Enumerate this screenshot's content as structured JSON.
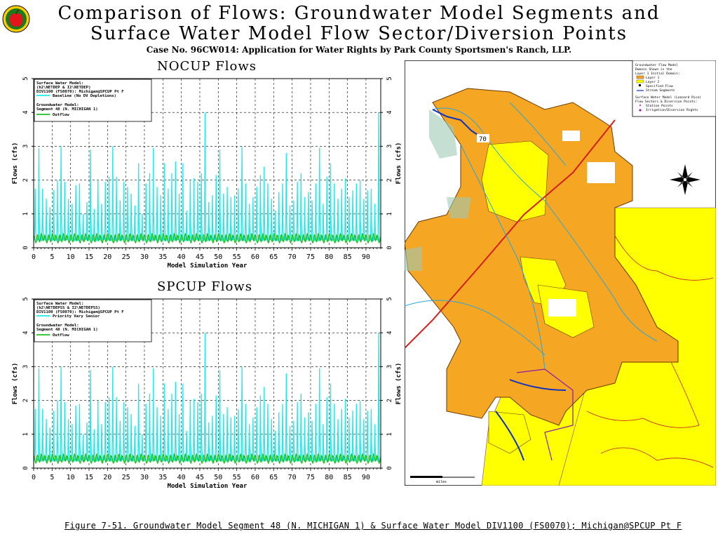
{
  "header": {
    "title_line1": "Comparison of Flows: Groundwater Model Segments and",
    "title_line2": "Surface Water Model Flow Sector/Diversion Points",
    "subtitle": "Case No. 96CW014: Application for Water Rights by Park County Sportsmen's Ranch, LLP."
  },
  "caption": "Figure 7-51. Groundwater Model Segment 48 (N. MICHIGAN 1) & Surface Water Model DIV1100 (FS0070); Michigan@SPCUP Pt F",
  "colors": {
    "cyan_series": "#22e8e8",
    "green_series": "#1fbf1f",
    "map_orange": "#f5a623",
    "map_yellow": "#ffff00"
  },
  "chart_data": [
    {
      "type": "line",
      "title": "NOCUP Flows",
      "xlabel": "Model Simulation Year",
      "ylabel": "Flows (cfs)",
      "xlim": [
        0,
        94
      ],
      "ylim": [
        0,
        5
      ],
      "xticks": [
        "0",
        "5",
        "10",
        "15",
        "20",
        "25",
        "30",
        "35",
        "40",
        "45",
        "50",
        "55",
        "60",
        "65",
        "70",
        "75",
        "80",
        "85",
        "90"
      ],
      "yticks": [
        "0",
        "1",
        "2",
        "3",
        "4",
        "5"
      ],
      "legend": {
        "placement": "top-left",
        "lines": [
          "Surface Water Model:",
          "(h2\\NETDEP & I2\\NETDEP)",
          "DIV1100 (FS0070): Michigan@SPCUP Pt F",
          "Baseline (No DV Depletions)",
          "Groundwater Model:",
          "Segment 48 (N. MICHIGAN 1)",
          "Outflow"
        ]
      },
      "annual_peaks": [
        1.75,
        2.95,
        1.75,
        1.45,
        1.2,
        1.7,
        2.0,
        3.0,
        1.95,
        1.45,
        1.3,
        1.85,
        1.9,
        1.0,
        1.35,
        2.9,
        1.15,
        2.0,
        1.3,
        1.95,
        2.1,
        3.0,
        2.1,
        1.4,
        1.95,
        1.8,
        1.6,
        1.25,
        2.5,
        1.0,
        1.9,
        2.2,
        2.95,
        1.8,
        1.55,
        2.5,
        1.75,
        2.2,
        2.55,
        1.6,
        2.5,
        1.1,
        2.0,
        2.05,
        1.95,
        2.2,
        4.0,
        1.35,
        1.55,
        2.15,
        2.9,
        1.6,
        1.8,
        1.5,
        1.55,
        1.75,
        3.0,
        1.9,
        1.3,
        1.5,
        1.8,
        2.15,
        2.4,
        1.9,
        1.45,
        1.1,
        1.65,
        1.9,
        2.8,
        1.25,
        1.4,
        1.95,
        2.2,
        1.5,
        1.65,
        1.4,
        1.9,
        2.95,
        1.3,
        2.1,
        2.5,
        1.9,
        1.45,
        1.75,
        2.05,
        1.5,
        1.7,
        1.9,
        2.0,
        1.45,
        1.7,
        1.75,
        1.3,
        4.0
      ],
      "series": [
        {
          "name": "Baseline (No DV Depletions)",
          "color": "#22e8e8",
          "baseflow": 0.2
        },
        {
          "name": "Outflow",
          "color": "#1fbf1f",
          "baseflow": 0.25
        }
      ]
    },
    {
      "type": "line",
      "title": "SPCUP Flows",
      "xlabel": "Model Simulation Year",
      "ylabel": "Flows (cfs)",
      "xlim": [
        0,
        94
      ],
      "ylim": [
        0,
        5
      ],
      "xticks": [
        "0",
        "5",
        "10",
        "15",
        "20",
        "25",
        "30",
        "35",
        "40",
        "45",
        "50",
        "55",
        "60",
        "65",
        "70",
        "75",
        "80",
        "85",
        "90"
      ],
      "yticks": [
        "0",
        "1",
        "2",
        "3",
        "4",
        "5"
      ],
      "legend": {
        "placement": "top-left",
        "lines": [
          "Surface Water Model:",
          "(h2\\NETDEPSS & I2\\NETDEPSS)",
          "DIV1100 (FS0070): Michigan@SPCUP Pt F",
          "Priority Vary Senior",
          "Groundwater Model:",
          "Segment 48 (N. MICHIGAN 1)",
          "Outflow"
        ]
      },
      "annual_peaks": [
        1.75,
        2.95,
        1.75,
        1.45,
        1.2,
        1.7,
        2.0,
        3.0,
        1.95,
        1.45,
        1.3,
        1.85,
        1.9,
        1.0,
        1.35,
        2.9,
        1.15,
        2.0,
        1.3,
        1.95,
        2.1,
        3.0,
        2.1,
        1.4,
        1.95,
        1.8,
        1.6,
        1.25,
        2.5,
        1.0,
        1.9,
        2.2,
        2.95,
        1.8,
        1.55,
        2.5,
        1.75,
        2.2,
        2.55,
        1.6,
        2.5,
        1.1,
        2.0,
        2.05,
        1.95,
        2.2,
        4.0,
        1.35,
        1.55,
        2.15,
        2.9,
        1.6,
        1.8,
        1.5,
        1.55,
        1.75,
        3.0,
        1.9,
        1.3,
        1.5,
        1.8,
        2.15,
        2.4,
        1.9,
        1.45,
        1.1,
        1.65,
        1.9,
        2.8,
        1.25,
        1.4,
        1.95,
        2.2,
        1.5,
        1.65,
        1.4,
        1.9,
        2.95,
        1.3,
        2.1,
        2.5,
        1.9,
        1.45,
        1.75,
        2.05,
        1.5,
        1.7,
        1.9,
        2.0,
        1.45,
        1.7,
        1.75,
        1.3,
        4.0
      ],
      "series": [
        {
          "name": "Priority Vary Senior",
          "color": "#22e8e8",
          "baseflow": 0.2
        },
        {
          "name": "Outflow",
          "color": "#1fbf1f",
          "baseflow": 0.25
        }
      ]
    }
  ],
  "map": {
    "label_70": "70",
    "scale_label": "miles",
    "legend_lines": [
      "Groundwater Flow Model",
      "Domain Shown is the",
      "Layer 1 Initial Domain:",
      "Layer 1",
      "Layer 2",
      "Specified Flow",
      "Stream Segments",
      "Surface Water Model (Leonard Rice)",
      "Flow Sectors & Diversion Points:",
      "Station Points",
      "Irrigation/Diversion Rights"
    ]
  }
}
